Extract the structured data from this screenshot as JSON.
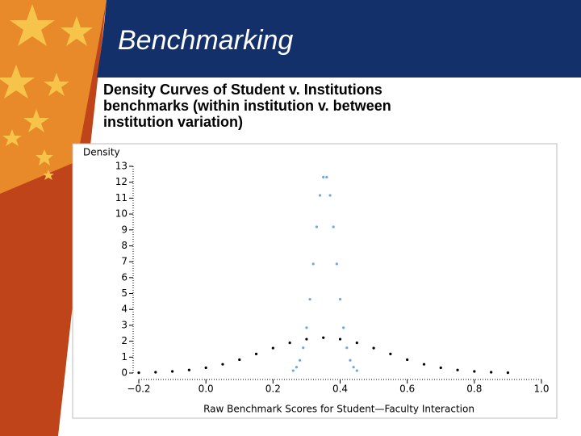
{
  "header": {
    "title": "Benchmarking",
    "subtitle_lines": [
      "Density Curves of Student v. Institutions",
      "benchmarks (within institution v. between",
      "institution variation)"
    ]
  },
  "chart_data": {
    "type": "scatter",
    "ylabel": "Density",
    "xlabel": "Raw Benchmark Scores for Student—Faculty Interaction",
    "xlim": [
      -0.2,
      1.0
    ],
    "xticks": [
      {
        "value": -0.2,
        "label": "−0.2"
      },
      {
        "value": 0,
        "label": "0.0"
      },
      {
        "value": 0.2,
        "label": "0.2"
      },
      {
        "value": 0.4,
        "label": "0.4"
      },
      {
        "value": 0.6,
        "label": "0.6"
      },
      {
        "value": 0.8,
        "label": "0.8"
      },
      {
        "value": 1,
        "label": "1.0"
      }
    ],
    "ylim": [
      0,
      13
    ],
    "yticks": [
      0,
      1,
      2,
      3,
      4,
      5,
      6,
      7,
      8,
      9,
      10,
      11,
      12,
      13
    ],
    "series": [
      {
        "color": "#000000",
        "x": [
          -0.2,
          -0.15,
          -0.1,
          -0.05,
          0,
          0.05,
          0.1,
          0.15,
          0.2,
          0.25,
          0.3,
          0.35,
          0.4,
          0.45,
          0.5,
          0.55,
          0.6,
          0.65,
          0.7,
          0.75,
          0.8,
          0.85,
          0.9
        ],
        "values": [
          0.02,
          0.05,
          0.1,
          0.19,
          0.33,
          0.55,
          0.84,
          1.2,
          1.57,
          1.9,
          2.13,
          2.22,
          2.13,
          1.9,
          1.57,
          1.2,
          0.84,
          0.55,
          0.33,
          0.19,
          0.1,
          0.05,
          0.02
        ]
      },
      {
        "color": "#6fa8dc",
        "x": [
          0.26,
          0.27,
          0.28,
          0.29,
          0.3,
          0.31,
          0.32,
          0.33,
          0.34,
          0.35,
          0.36,
          0.37,
          0.38,
          0.39,
          0.4,
          0.41,
          0.42,
          0.43,
          0.44,
          0.45
        ],
        "values": [
          0.15,
          0.37,
          0.8,
          1.59,
          2.85,
          4.64,
          6.86,
          9.19,
          11.17,
          12.32,
          12.32,
          11.17,
          9.19,
          6.86,
          4.64,
          2.85,
          1.59,
          0.8,
          0.37,
          0.15
        ]
      }
    ]
  }
}
